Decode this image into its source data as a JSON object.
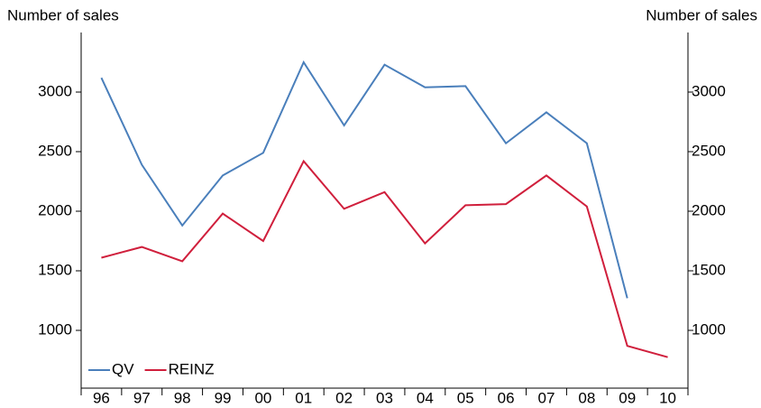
{
  "chart_data": {
    "type": "line",
    "y_label": "Number of sales",
    "y2_label": "Number of sales",
    "categories": [
      "96",
      "97",
      "98",
      "99",
      "00",
      "01",
      "02",
      "03",
      "04",
      "05",
      "06",
      "07",
      "08",
      "09",
      "10"
    ],
    "series": [
      {
        "name": "QV",
        "color": "#4a7fbb",
        "values": [
          3120,
          2390,
          1880,
          2300,
          2490,
          3250,
          2720,
          3230,
          3040,
          3050,
          2570,
          2830,
          2570,
          1270,
          null
        ]
      },
      {
        "name": "REINZ",
        "color": "#d01f3c",
        "values": [
          1610,
          1700,
          1580,
          1980,
          1750,
          2420,
          2020,
          2160,
          1730,
          2050,
          2060,
          2300,
          2040,
          870,
          775
        ]
      }
    ],
    "ylim": [
      500,
      3500
    ],
    "yticks": [
      1000,
      1500,
      2000,
      2500,
      3000
    ],
    "y2lim": [
      500,
      3500
    ],
    "y2ticks": [
      1000,
      1500,
      2000,
      2500,
      3000
    ],
    "legend": "lower left"
  }
}
